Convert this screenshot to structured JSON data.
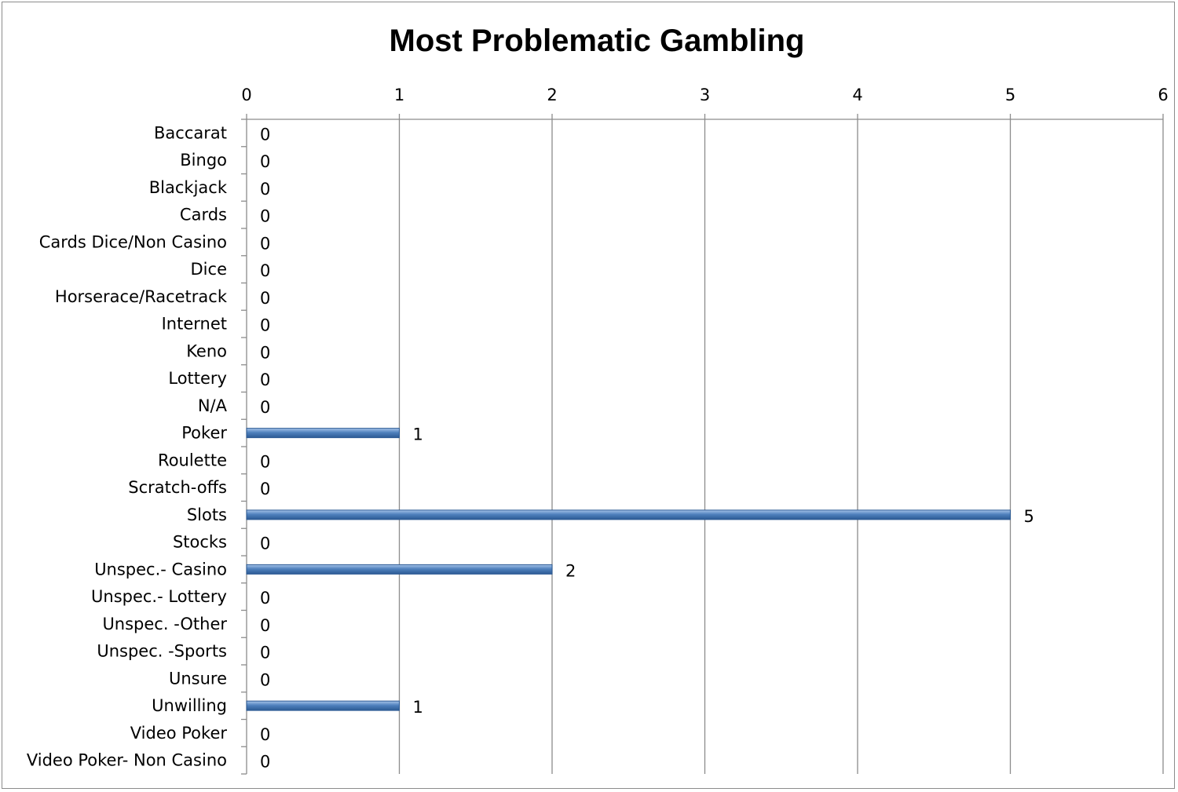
{
  "chart_data": {
    "type": "bar",
    "orientation": "horizontal",
    "title": "Most Problematic Gambling",
    "categories": [
      "Baccarat",
      "Bingo",
      "Blackjack",
      "Cards",
      "Cards Dice/Non Casino",
      "Dice",
      "Horserace/Racetrack",
      "Internet",
      "Keno",
      "Lottery",
      "N/A",
      "Poker",
      "Roulette",
      "Scratch-offs",
      "Slots",
      "Stocks",
      "Unspec.- Casino",
      "Unspec.- Lottery",
      "Unspec. -Other",
      "Unspec. -Sports",
      "Unsure",
      "Unwilling",
      "Video Poker",
      "Video Poker- Non Casino"
    ],
    "values": [
      0,
      0,
      0,
      0,
      0,
      0,
      0,
      0,
      0,
      0,
      0,
      1,
      0,
      0,
      5,
      0,
      2,
      0,
      0,
      0,
      0,
      1,
      0,
      0
    ],
    "xlim": [
      0,
      6
    ],
    "x_ticks": [
      "0",
      "1",
      "2",
      "3",
      "4",
      "5",
      "6"
    ],
    "x_axis_position": "top",
    "grid": true,
    "data_labels": true,
    "legend": "none",
    "bar_color": "#4f81bd"
  }
}
